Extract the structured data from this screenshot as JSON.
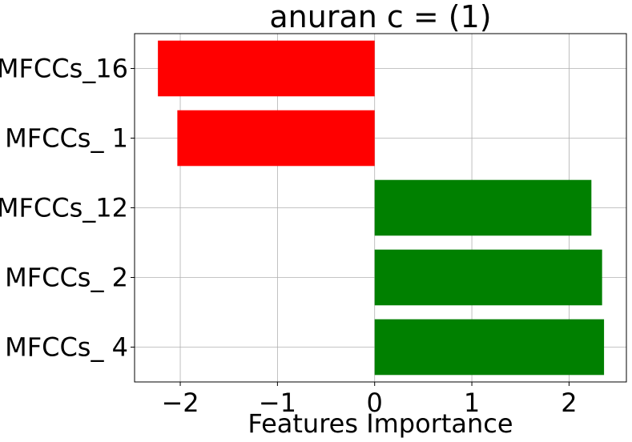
{
  "chart_data": {
    "type": "bar",
    "orientation": "horizontal",
    "title": "anuran c = (1)",
    "xlabel": "Features Importance",
    "ylabel": "",
    "categories": [
      "MFCCs_16",
      "MFCCs_ 1",
      "MFCCs_12",
      "MFCCs_ 2",
      "MFCCs_ 4"
    ],
    "values": [
      -2.23,
      -2.03,
      2.23,
      2.34,
      2.36
    ],
    "colors": [
      "#ff0000",
      "#ff0000",
      "#008000",
      "#008000",
      "#008000"
    ],
    "xlim": [
      -2.47,
      2.59
    ],
    "xticks": [
      -2,
      -1,
      0,
      1,
      2
    ],
    "xtick_labels": [
      "−2",
      "−1",
      "0",
      "1",
      "2"
    ],
    "grid": true
  }
}
